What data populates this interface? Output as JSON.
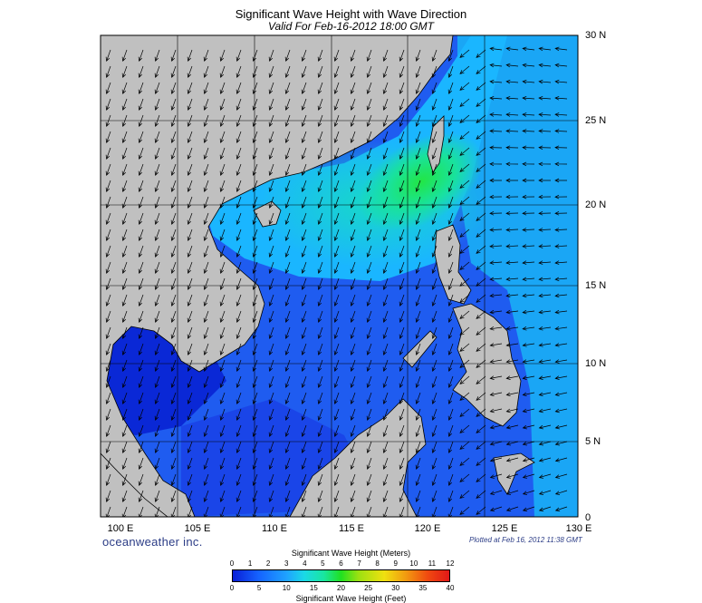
{
  "header": {
    "title": "Significant Wave Height with Wave Direction",
    "subtitle": "Valid For Feb-16-2012 18:00 GMT"
  },
  "axes": {
    "lat_labels": [
      "30 N",
      "25 N",
      "20 N",
      "15 N",
      "10 N",
      "5 N",
      "0"
    ],
    "lon_labels": [
      "100 E",
      "105 E",
      "110 E",
      "115 E",
      "120 E",
      "125 E",
      "130 E"
    ]
  },
  "footer": {
    "brand": "oceanweather inc.",
    "plotted": "Plotted at Feb 16, 2012 11:38 GMT"
  },
  "colorbar": {
    "title_meters": "Significant Wave Height (Meters)",
    "title_feet": "Significant Wave Height (Feet)",
    "meter_ticks": [
      "0",
      "1",
      "2",
      "3",
      "4",
      "5",
      "6",
      "7",
      "8",
      "9",
      "10",
      "11",
      "12"
    ],
    "feet_ticks": [
      "0",
      "5",
      "10",
      "15",
      "20",
      "25",
      "30",
      "35",
      "40"
    ]
  },
  "colors": {
    "land": "#c0c0c0",
    "deep": "#0a1fd6",
    "low": "#1f56f2",
    "mid": "#1aa6ff",
    "high": "#19e6a0",
    "peak": "#20e020"
  },
  "wave_direction": "from northeast toward southwest"
}
